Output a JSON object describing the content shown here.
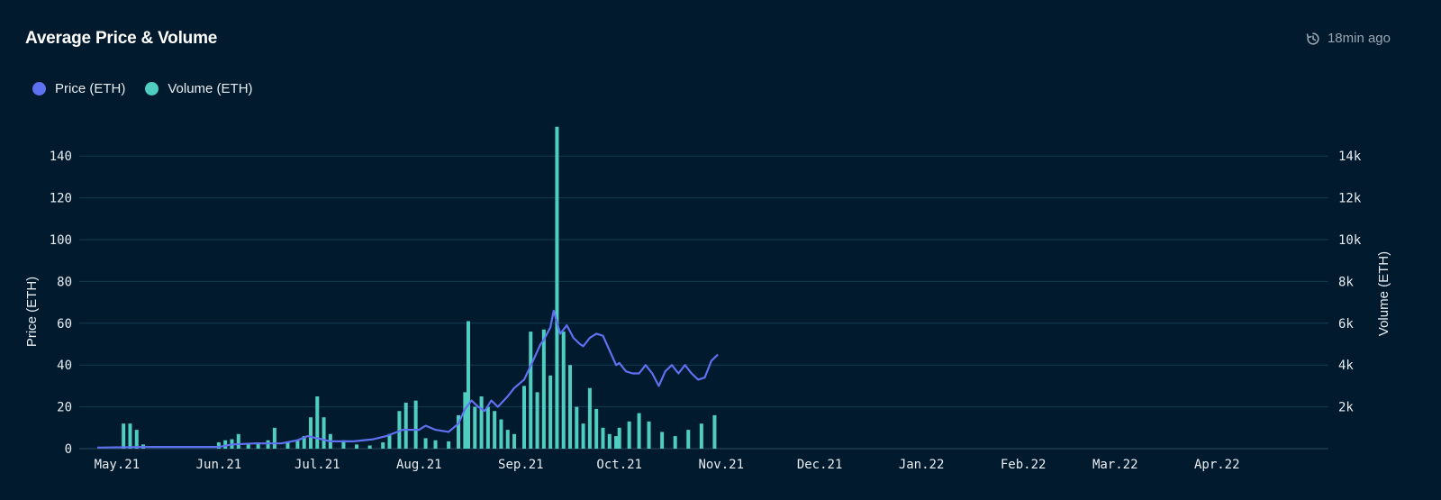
{
  "header": {
    "title": "Average Price & Volume",
    "updated": "18min ago"
  },
  "colors": {
    "price": "#5f71f0",
    "volume": "#4ecdc0",
    "grid": "#153a4e",
    "tick": "#e8edf2"
  },
  "chart_data": {
    "type": "bar+line",
    "title": "Average Price & Volume",
    "legend_position": "top-left",
    "grid": true,
    "left_axis": {
      "label": "Price (ETH)",
      "min": 0,
      "max": 150,
      "ticks": [
        0,
        20,
        40,
        60,
        80,
        100,
        120,
        140
      ],
      "tick_labels": [
        "0",
        "20",
        "40",
        "60",
        "80",
        "100",
        "120",
        "140"
      ]
    },
    "right_axis": {
      "label": "Volume (ETH)",
      "min": 0,
      "max": 15000,
      "ticks": [
        2000,
        4000,
        6000,
        8000,
        10000,
        12000,
        14000
      ],
      "tick_labels": [
        "2k",
        "4k",
        "6k",
        "8k",
        "10k",
        "12k",
        "14k"
      ]
    },
    "x_axis": {
      "start": "2021-04-25",
      "end": "2022-04-30",
      "tick_dates": [
        "2021-05-01",
        "2021-06-01",
        "2021-07-01",
        "2021-08-01",
        "2021-09-01",
        "2021-10-01",
        "2021-11-01",
        "2021-12-01",
        "2022-01-01",
        "2022-02-01",
        "2022-03-01",
        "2022-04-01"
      ],
      "tick_labels": [
        "May.21",
        "Jun.21",
        "Jul.21",
        "Aug.21",
        "Sep.21",
        "Oct.21",
        "Nov.21",
        "Dec.21",
        "Jan.22",
        "Feb.22",
        "Mar.22",
        "Apr.22"
      ]
    },
    "series": [
      {
        "name": "Price (ETH)",
        "type": "line",
        "axis": "left",
        "points": [
          [
            "2021-04-25",
            0.5
          ],
          [
            "2021-05-10",
            0.8
          ],
          [
            "2021-05-20",
            0.8
          ],
          [
            "2021-06-01",
            0.8
          ],
          [
            "2021-06-05",
            2
          ],
          [
            "2021-06-12",
            2.5
          ],
          [
            "2021-06-20",
            2.5
          ],
          [
            "2021-06-25",
            4
          ],
          [
            "2021-06-28",
            6
          ],
          [
            "2021-07-01",
            5
          ],
          [
            "2021-07-05",
            3.5
          ],
          [
            "2021-07-12",
            3.5
          ],
          [
            "2021-07-18",
            4.5
          ],
          [
            "2021-07-22",
            6
          ],
          [
            "2021-07-27",
            9
          ],
          [
            "2021-08-01",
            9
          ],
          [
            "2021-08-03",
            11
          ],
          [
            "2021-08-06",
            9
          ],
          [
            "2021-08-10",
            8
          ],
          [
            "2021-08-13",
            12
          ],
          [
            "2021-08-15",
            19
          ],
          [
            "2021-08-17",
            23
          ],
          [
            "2021-08-19",
            20
          ],
          [
            "2021-08-21",
            18
          ],
          [
            "2021-08-23",
            23
          ],
          [
            "2021-08-25",
            20
          ],
          [
            "2021-08-28",
            25
          ],
          [
            "2021-08-30",
            29
          ],
          [
            "2021-09-02",
            33
          ],
          [
            "2021-09-05",
            43
          ],
          [
            "2021-09-07",
            50
          ],
          [
            "2021-09-08",
            52
          ],
          [
            "2021-09-10",
            58
          ],
          [
            "2021-09-11",
            66
          ],
          [
            "2021-09-13",
            55
          ],
          [
            "2021-09-15",
            59
          ],
          [
            "2021-09-17",
            53
          ],
          [
            "2021-09-19",
            50
          ],
          [
            "2021-09-20",
            49
          ],
          [
            "2021-09-22",
            53
          ],
          [
            "2021-09-24",
            55
          ],
          [
            "2021-09-26",
            54
          ],
          [
            "2021-09-28",
            47
          ],
          [
            "2021-09-30",
            40
          ],
          [
            "2021-10-01",
            41
          ],
          [
            "2021-10-03",
            37
          ],
          [
            "2021-10-05",
            36
          ],
          [
            "2021-10-07",
            36
          ],
          [
            "2021-10-09",
            40
          ],
          [
            "2021-10-11",
            36
          ],
          [
            "2021-10-13",
            30
          ],
          [
            "2021-10-15",
            37
          ],
          [
            "2021-10-17",
            40
          ],
          [
            "2021-10-19",
            36
          ],
          [
            "2021-10-21",
            40
          ],
          [
            "2021-10-23",
            36
          ],
          [
            "2021-10-25",
            33
          ],
          [
            "2021-10-27",
            34
          ],
          [
            "2021-10-29",
            42
          ],
          [
            "2021-10-31",
            45
          ]
        ]
      },
      {
        "name": "Volume (ETH)",
        "type": "bar",
        "axis": "right",
        "points": [
          [
            "2021-05-03",
            1200
          ],
          [
            "2021-05-05",
            1200
          ],
          [
            "2021-05-07",
            900
          ],
          [
            "2021-05-09",
            200
          ],
          [
            "2021-06-01",
            300
          ],
          [
            "2021-06-03",
            400
          ],
          [
            "2021-06-05",
            450
          ],
          [
            "2021-06-07",
            700
          ],
          [
            "2021-06-10",
            200
          ],
          [
            "2021-06-13",
            300
          ],
          [
            "2021-06-16",
            400
          ],
          [
            "2021-06-18",
            1000
          ],
          [
            "2021-06-22",
            300
          ],
          [
            "2021-06-25",
            400
          ],
          [
            "2021-06-27",
            600
          ],
          [
            "2021-06-29",
            1500
          ],
          [
            "2021-07-01",
            2500
          ],
          [
            "2021-07-03",
            1500
          ],
          [
            "2021-07-05",
            700
          ],
          [
            "2021-07-09",
            400
          ],
          [
            "2021-07-13",
            200
          ],
          [
            "2021-07-17",
            150
          ],
          [
            "2021-07-21",
            300
          ],
          [
            "2021-07-23",
            700
          ],
          [
            "2021-07-26",
            1800
          ],
          [
            "2021-07-28",
            2200
          ],
          [
            "2021-07-31",
            2300
          ],
          [
            "2021-08-03",
            500
          ],
          [
            "2021-08-06",
            400
          ],
          [
            "2021-08-10",
            350
          ],
          [
            "2021-08-13",
            1600
          ],
          [
            "2021-08-15",
            2700
          ],
          [
            "2021-08-16",
            6100
          ],
          [
            "2021-08-18",
            2000
          ],
          [
            "2021-08-20",
            2500
          ],
          [
            "2021-08-22",
            2000
          ],
          [
            "2021-08-24",
            1800
          ],
          [
            "2021-08-26",
            1400
          ],
          [
            "2021-08-28",
            900
          ],
          [
            "2021-08-30",
            700
          ],
          [
            "2021-09-02",
            3000
          ],
          [
            "2021-09-04",
            5600
          ],
          [
            "2021-09-06",
            2700
          ],
          [
            "2021-09-08",
            5700
          ],
          [
            "2021-09-10",
            3500
          ],
          [
            "2021-09-12",
            15400
          ],
          [
            "2021-09-14",
            5600
          ],
          [
            "2021-09-16",
            4000
          ],
          [
            "2021-09-18",
            2000
          ],
          [
            "2021-09-20",
            1200
          ],
          [
            "2021-09-22",
            2900
          ],
          [
            "2021-09-24",
            1900
          ],
          [
            "2021-09-26",
            1000
          ],
          [
            "2021-09-28",
            700
          ],
          [
            "2021-09-30",
            600
          ],
          [
            "2021-10-01",
            1000
          ],
          [
            "2021-10-04",
            1300
          ],
          [
            "2021-10-07",
            1700
          ],
          [
            "2021-10-10",
            1300
          ],
          [
            "2021-10-14",
            800
          ],
          [
            "2021-10-18",
            600
          ],
          [
            "2021-10-22",
            900
          ],
          [
            "2021-10-26",
            1200
          ],
          [
            "2021-10-30",
            1600
          ]
        ]
      }
    ]
  }
}
